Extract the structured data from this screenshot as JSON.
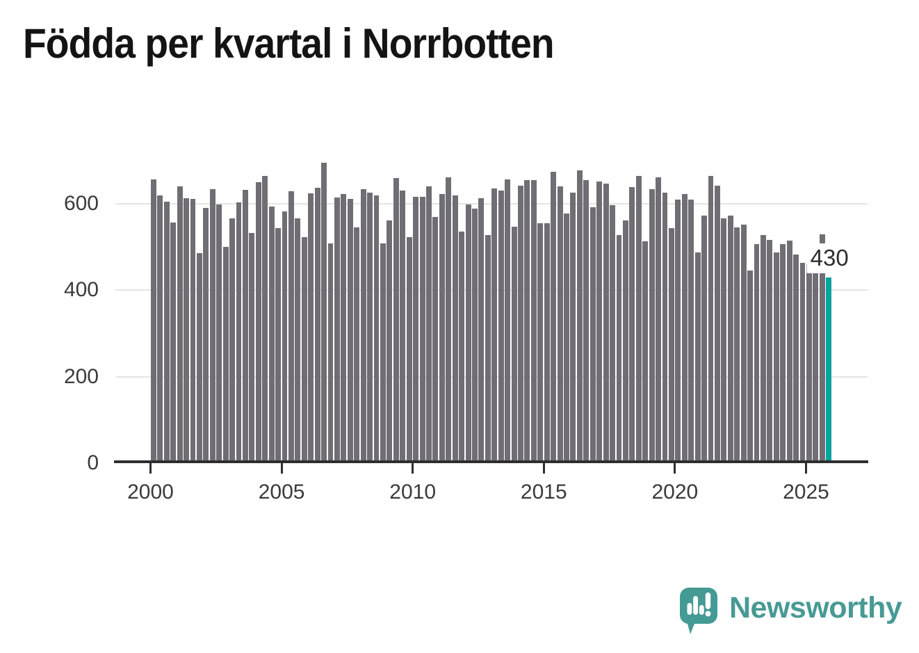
{
  "header": {
    "title": "Födda per kvartal i Norrbotten"
  },
  "chart_data": {
    "type": "bar",
    "title": "Födda per kvartal i Norrbotten",
    "frequency": "quarterly",
    "start_period": "2000-Q1",
    "end_period": "2025-Q4",
    "values": [
      657,
      620,
      605,
      556,
      640,
      613,
      611,
      485,
      590,
      634,
      598,
      500,
      566,
      604,
      632,
      532,
      650,
      664,
      594,
      543,
      582,
      629,
      567,
      523,
      624,
      637,
      695,
      509,
      614,
      623,
      611,
      546,
      634,
      626,
      620,
      509,
      562,
      660,
      630,
      522,
      616,
      616,
      641,
      570,
      623,
      661,
      619,
      536,
      598,
      589,
      613,
      528,
      635,
      631,
      657,
      547,
      642,
      655,
      655,
      555,
      555,
      674,
      640,
      577,
      625,
      677,
      655,
      592,
      651,
      647,
      596,
      527,
      562,
      638,
      664,
      513,
      633,
      661,
      626,
      543,
      610,
      623,
      610,
      488,
      573,
      664,
      642,
      567,
      573,
      545,
      552,
      445,
      506,
      528,
      516,
      488,
      506,
      515,
      482,
      464,
      461,
      459,
      529,
      430
    ],
    "highlight": {
      "index": 103,
      "value": 430,
      "label": "430",
      "color": "#00a49e"
    },
    "bar_color": "#706d74",
    "xticks": [
      "2000",
      "2005",
      "2010",
      "2015",
      "2020",
      "2025"
    ],
    "yticks": [
      "0",
      "200",
      "400",
      "600"
    ],
    "gridline_values": [
      200,
      400,
      600
    ],
    "ylim": [
      0,
      700
    ],
    "grid": true,
    "legend": "none",
    "xlabel": "",
    "ylabel": ""
  },
  "branding": {
    "logo_text": "Newsworthy",
    "logo_icon": "speech-bubble-bar-chart",
    "text_color": "#489a94",
    "bubble_color": "#449a94"
  }
}
